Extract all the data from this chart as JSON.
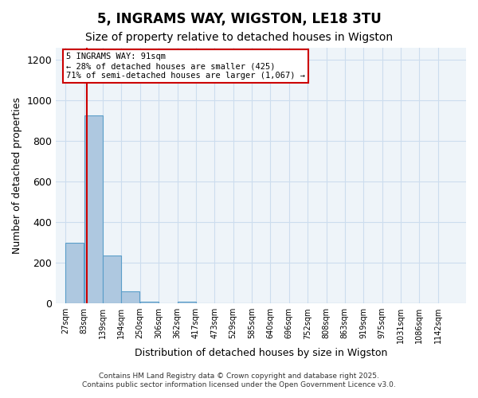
{
  "title": "5, INGRAMS WAY, WIGSTON, LE18 3TU",
  "subtitle": "Size of property relative to detached houses in Wigston",
  "xlabel": "Distribution of detached houses by size in Wigston",
  "ylabel": "Number of detached properties",
  "bin_labels": [
    "27sqm",
    "83sqm",
    "139sqm",
    "194sqm",
    "250sqm",
    "306sqm",
    "362sqm",
    "417sqm",
    "473sqm",
    "529sqm",
    "585sqm",
    "640sqm",
    "696sqm",
    "752sqm",
    "808sqm",
    "863sqm",
    "919sqm",
    "975sqm",
    "1031sqm",
    "1086sqm",
    "1142sqm"
  ],
  "bin_edges": [
    27,
    83,
    139,
    194,
    250,
    306,
    362,
    417,
    473,
    529,
    585,
    640,
    696,
    752,
    808,
    863,
    919,
    975,
    1031,
    1086,
    1142
  ],
  "bar_heights": [
    300,
    925,
    235,
    60,
    10,
    0,
    10,
    0,
    0,
    0,
    0,
    0,
    0,
    0,
    0,
    0,
    0,
    0,
    0,
    0
  ],
  "bar_color": "#aec8e0",
  "bar_edge_color": "#5a9ec9",
  "property_size": 91,
  "red_line_color": "#cc0000",
  "annotation_text": "5 INGRAMS WAY: 91sqm\n← 28% of detached houses are smaller (425)\n71% of semi-detached houses are larger (1,067) →",
  "annotation_box_color": "#cc0000",
  "ylim": [
    0,
    1260
  ],
  "yticks": [
    0,
    200,
    400,
    600,
    800,
    1000,
    1200
  ],
  "grid_color": "#ccddee",
  "background_color": "#eef4f9",
  "footer_line1": "Contains HM Land Registry data © Crown copyright and database right 2025.",
  "footer_line2": "Contains public sector information licensed under the Open Government Licence v3.0."
}
